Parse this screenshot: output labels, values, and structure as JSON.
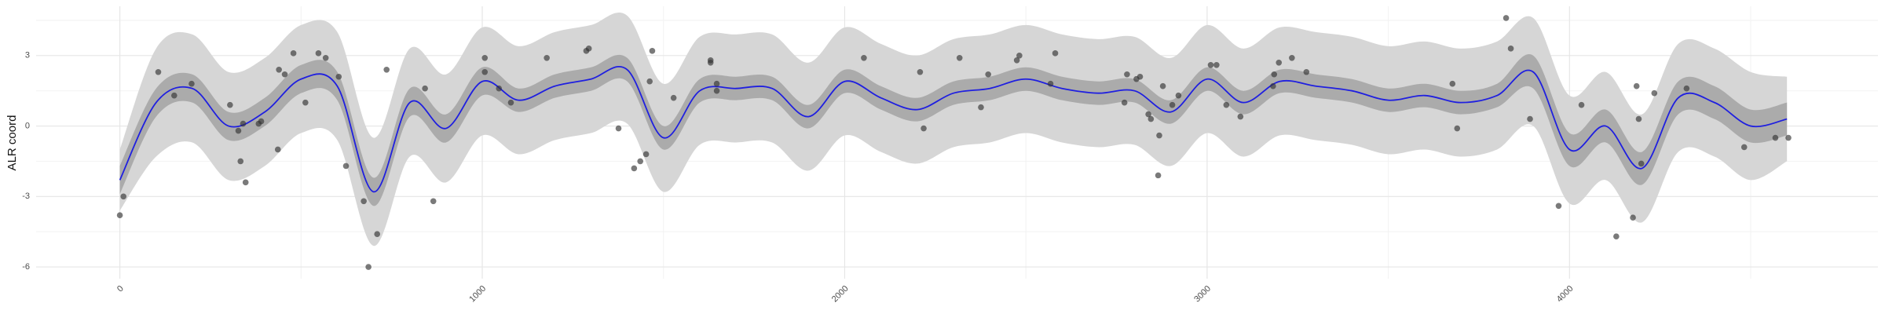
{
  "chart_data": {
    "type": "smooth",
    "y_label": "ALR coord",
    "xlim": [
      -231,
      4851
    ],
    "ylim": [
      -6.5,
      5.1
    ],
    "xticks": [
      0,
      1000,
      2000,
      3000,
      4000
    ],
    "yticks": [
      -6,
      -3,
      0,
      3
    ],
    "grid": true,
    "x_minor_grid": [
      500,
      1500,
      2500,
      3500,
      4500
    ],
    "y_minor_grid": [
      -4.5,
      -1.5,
      1.5,
      4.5
    ],
    "x": [
      0,
      100,
      200,
      300,
      400,
      500,
      600,
      700,
      800,
      900,
      1000,
      1100,
      1200,
      1300,
      1400,
      1500,
      1600,
      1700,
      1800,
      1900,
      2000,
      2100,
      2200,
      2300,
      2400,
      2500,
      2600,
      2700,
      2800,
      2900,
      3000,
      3100,
      3200,
      3300,
      3400,
      3500,
      3600,
      3700,
      3800,
      3900,
      4000,
      4100,
      4200,
      4300,
      4400,
      4500,
      4600
    ],
    "line": {
      "color": "#1f1fe0",
      "values": [
        -2.3,
        1.0,
        1.6,
        0.0,
        0.6,
        2.0,
        1.7,
        -2.8,
        1.0,
        -0.1,
        1.9,
        1.1,
        1.7,
        2.0,
        2.4,
        -0.5,
        1.5,
        1.6,
        1.6,
        0.4,
        1.9,
        1.2,
        0.7,
        1.4,
        1.6,
        2.0,
        1.6,
        1.4,
        1.5,
        0.6,
        2.0,
        1.0,
        1.9,
        1.7,
        1.5,
        1.1,
        1.3,
        1.0,
        1.3,
        2.3,
        -1.0,
        0.0,
        -1.8,
        1.2,
        1.0,
        0.0,
        0.3
      ]
    },
    "band_inner": {
      "color": "#ababab",
      "lower": [
        -2.9,
        0.4,
        1.0,
        -0.6,
        0.0,
        1.4,
        1.1,
        -3.4,
        0.4,
        -0.7,
        1.3,
        0.6,
        1.2,
        1.5,
        1.9,
        -1.0,
        1.0,
        1.1,
        1.1,
        -0.1,
        1.4,
        0.7,
        0.2,
        0.9,
        1.1,
        1.5,
        1.1,
        0.9,
        1.0,
        0.1,
        1.5,
        0.5,
        1.4,
        1.2,
        1.0,
        0.6,
        0.8,
        0.5,
        0.8,
        1.6,
        -1.7,
        -0.7,
        -2.5,
        0.5,
        0.3,
        -0.7,
        -0.4
      ],
      "upper": [
        -1.7,
        1.6,
        2.2,
        0.6,
        1.2,
        2.6,
        2.3,
        -2.2,
        1.6,
        0.5,
        2.5,
        1.6,
        2.2,
        2.5,
        2.9,
        0.0,
        2.0,
        2.1,
        2.1,
        0.9,
        2.4,
        1.7,
        1.2,
        1.9,
        2.1,
        2.5,
        2.1,
        1.9,
        2.0,
        1.1,
        2.5,
        1.5,
        2.4,
        2.2,
        2.0,
        1.6,
        1.8,
        1.5,
        1.8,
        3.0,
        -0.3,
        0.7,
        -1.1,
        1.9,
        1.7,
        0.7,
        1.0
      ]
    },
    "band_outer": {
      "color": "#d6d6d6",
      "lower": [
        -3.6,
        -1.3,
        -0.7,
        -2.3,
        -1.7,
        -0.3,
        -0.6,
        -5.1,
        -1.3,
        -2.4,
        -0.4,
        -1.2,
        -0.6,
        -0.3,
        0.1,
        -2.8,
        -0.8,
        -0.7,
        -0.7,
        -1.9,
        -0.4,
        -1.1,
        -1.6,
        -0.9,
        -0.7,
        -0.3,
        -0.7,
        -0.9,
        -0.8,
        -1.7,
        -0.3,
        -1.3,
        -0.4,
        -0.6,
        -0.8,
        -1.2,
        -1.0,
        -1.3,
        -1.0,
        0.0,
        -3.3,
        -2.3,
        -4.1,
        -1.1,
        -1.3,
        -2.3,
        -1.5
      ],
      "upper": [
        -1.0,
        3.3,
        3.9,
        2.3,
        2.9,
        4.3,
        4.0,
        -0.5,
        3.3,
        2.2,
        4.2,
        3.4,
        4.0,
        4.3,
        4.7,
        1.8,
        3.8,
        3.9,
        3.9,
        2.7,
        4.2,
        3.5,
        3.0,
        3.7,
        3.9,
        4.3,
        3.9,
        3.7,
        3.8,
        2.9,
        4.3,
        3.3,
        4.2,
        4.0,
        3.8,
        3.4,
        3.6,
        3.3,
        3.6,
        4.6,
        1.3,
        2.3,
        0.5,
        3.5,
        3.3,
        2.3,
        2.1
      ]
    },
    "points": {
      "color": "#333333",
      "x": [
        0,
        10,
        106,
        150,
        198,
        304,
        327,
        333,
        347,
        340,
        383,
        390,
        436,
        439,
        455,
        479,
        512,
        548,
        568,
        604,
        624,
        673,
        686,
        710,
        736,
        842,
        865,
        1007,
        1007,
        1046,
        1079,
        1178,
        1287,
        1294,
        1376,
        1419,
        1436,
        1452,
        1462,
        1469,
        1528,
        1630,
        1630,
        1647,
        1647,
        2053,
        2208,
        2218,
        2317,
        2376,
        2396,
        2475,
        2482,
        2568,
        2581,
        2772,
        2779,
        2805,
        2815,
        2838,
        2845,
        2865,
        2868,
        2878,
        2904,
        2921,
        3010,
        3026,
        3053,
        3092,
        3182,
        3185,
        3198,
        3234,
        3274,
        3677,
        3690,
        3825,
        3838,
        3891,
        3970,
        4033,
        4129,
        4175,
        4185,
        4191,
        4198,
        4234,
        4323,
        4482,
        4568,
        4604
      ],
      "y": [
        -3.8,
        -3.0,
        2.3,
        1.3,
        1.8,
        0.9,
        -0.2,
        -1.5,
        -2.4,
        0.1,
        0.1,
        0.2,
        -1.0,
        2.4,
        2.2,
        3.1,
        1.0,
        3.1,
        2.9,
        2.1,
        -1.7,
        -3.2,
        -6.0,
        -4.6,
        2.4,
        1.6,
        -3.2,
        2.9,
        2.3,
        1.6,
        1.0,
        2.9,
        3.2,
        3.3,
        -0.1,
        -1.8,
        -1.5,
        -1.2,
        1.9,
        3.2,
        1.2,
        2.8,
        2.7,
        1.5,
        1.8,
        2.9,
        2.3,
        -0.1,
        2.9,
        0.8,
        2.2,
        2.8,
        3.0,
        1.8,
        3.1,
        1.0,
        2.2,
        2.0,
        2.1,
        0.5,
        0.3,
        -2.1,
        -0.4,
        1.7,
        0.9,
        1.3,
        2.6,
        2.6,
        0.9,
        0.4,
        1.7,
        2.2,
        2.7,
        2.9,
        2.3,
        1.8,
        -0.1,
        4.6,
        3.3,
        0.3,
        -3.4,
        0.9,
        -4.7,
        -3.9,
        1.7,
        0.3,
        -1.6,
        1.4,
        1.6,
        -0.9,
        -0.5,
        -0.5
      ]
    }
  }
}
